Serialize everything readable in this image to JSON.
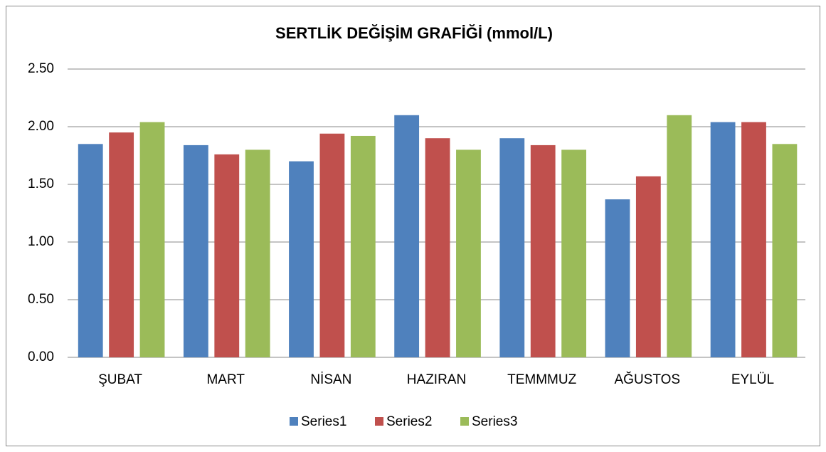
{
  "chart_data": {
    "type": "bar",
    "title": "SERTLİK DEĞİŞİM GRAFİĞİ (mmol/L)",
    "categories": [
      "ŞUBAT",
      "MART",
      "NİSAN",
      "HAZIRAN",
      "TEMMMUZ",
      "AĞUSTOS",
      "EYLÜL"
    ],
    "series": [
      {
        "name": "Series1",
        "color": "#4f81bd",
        "values": [
          1.85,
          1.84,
          1.7,
          2.1,
          1.9,
          1.37,
          2.04
        ]
      },
      {
        "name": "Series2",
        "color": "#c0504d",
        "values": [
          1.95,
          1.76,
          1.94,
          1.9,
          1.84,
          1.57,
          2.04
        ]
      },
      {
        "name": "Series3",
        "color": "#9bbb59",
        "values": [
          2.04,
          1.8,
          1.92,
          1.8,
          1.8,
          2.1,
          1.85
        ]
      }
    ],
    "ylim": [
      0,
      2.5
    ],
    "yticks": [
      {
        "value": 0,
        "label": "0.00"
      },
      {
        "value": 0.5,
        "label": "0.50"
      },
      {
        "value": 1,
        "label": "1.00"
      },
      {
        "value": 1.5,
        "label": "1.50"
      },
      {
        "value": 2,
        "label": "2.00"
      },
      {
        "value": 2.5,
        "label": "2.50"
      }
    ],
    "grid": true,
    "legend": "bottom"
  }
}
